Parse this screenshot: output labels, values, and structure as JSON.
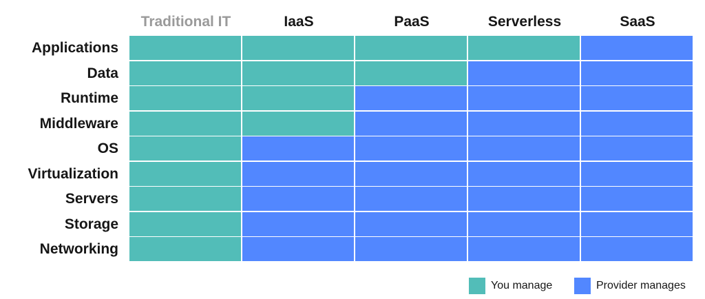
{
  "columns": [
    {
      "label": "Traditional IT",
      "muted": true
    },
    {
      "label": "IaaS",
      "muted": false
    },
    {
      "label": "PaaS",
      "muted": false
    },
    {
      "label": "Serverless",
      "muted": false
    },
    {
      "label": "SaaS",
      "muted": false
    }
  ],
  "rows": [
    "Applications",
    "Data",
    "Runtime",
    "Middleware",
    "OS",
    "Virtualization",
    "Servers",
    "Storage",
    "Networking"
  ],
  "managed_by": [
    [
      "you",
      "you",
      "you",
      "you",
      "provider"
    ],
    [
      "you",
      "you",
      "you",
      "provider",
      "provider"
    ],
    [
      "you",
      "you",
      "provider",
      "provider",
      "provider"
    ],
    [
      "you",
      "you",
      "provider",
      "provider",
      "provider"
    ],
    [
      "you",
      "provider",
      "provider",
      "provider",
      "provider"
    ],
    [
      "you",
      "provider",
      "provider",
      "provider",
      "provider"
    ],
    [
      "you",
      "provider",
      "provider",
      "provider",
      "provider"
    ],
    [
      "you",
      "provider",
      "provider",
      "provider",
      "provider"
    ],
    [
      "you",
      "provider",
      "provider",
      "provider",
      "provider"
    ]
  ],
  "legend": {
    "you": {
      "label": "You manage",
      "color": "#52bdb8"
    },
    "provider": {
      "label": "Provider manages",
      "color": "#5287ff"
    }
  }
}
